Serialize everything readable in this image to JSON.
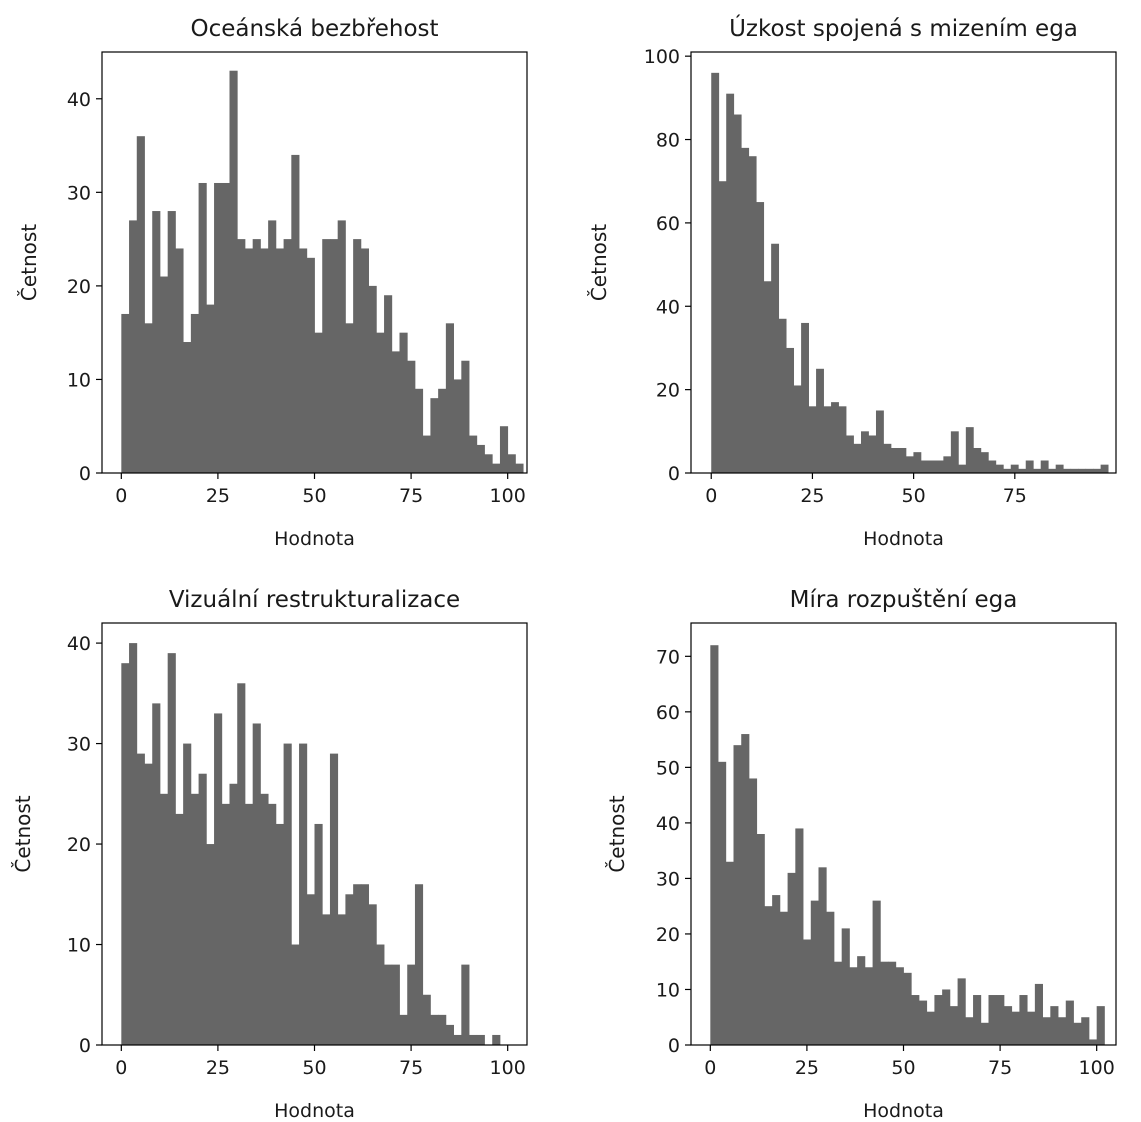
{
  "chart_data": [
    {
      "type": "bar",
      "title": "Oceánská bezbřehost",
      "xlabel": "Hodnota",
      "ylabel": "Četnost",
      "xlim": [
        -5,
        105
      ],
      "ylim": [
        0,
        45
      ],
      "xticks": [
        0,
        25,
        50,
        75,
        100
      ],
      "xtick_labels": [
        "0",
        "25",
        "50",
        "75",
        "100"
      ],
      "yticks": [
        0,
        10,
        20,
        30,
        40
      ],
      "ytick_labels": [
        "0",
        "10",
        "20",
        "30",
        "40"
      ],
      "bin_start": 0,
      "bin_width": 2,
      "values": [
        17,
        27,
        36,
        16,
        28,
        21,
        28,
        24,
        14,
        17,
        31,
        18,
        31,
        31,
        43,
        25,
        24,
        25,
        24,
        27,
        24,
        25,
        34,
        24,
        23,
        15,
        25,
        25,
        27,
        16,
        25,
        24,
        20,
        15,
        19,
        13,
        15,
        12,
        9,
        4,
        8,
        9,
        16,
        10,
        12,
        4,
        3,
        2,
        1,
        5,
        2,
        1
      ],
      "color": "#666666"
    },
    {
      "type": "bar",
      "title": "Úzkost spojená s mizením ega",
      "xlabel": "Hodnota",
      "ylabel": "Četnost",
      "xlim": [
        -5,
        100
      ],
      "ylim": [
        0,
        101
      ],
      "xticks": [
        0,
        25,
        50,
        75
      ],
      "xtick_labels": [
        "0",
        "25",
        "50",
        "75"
      ],
      "yticks": [
        0,
        20,
        40,
        60,
        80,
        100
      ],
      "ytick_labels": [
        "0",
        "20",
        "40",
        "60",
        "80",
        "100"
      ],
      "bin_start": 0,
      "bin_width": 1.85,
      "values": [
        96,
        70,
        91,
        86,
        78,
        76,
        65,
        46,
        55,
        37,
        30,
        21,
        36,
        16,
        25,
        16,
        17,
        16,
        9,
        7,
        10,
        9,
        15,
        7,
        6,
        6,
        4,
        5,
        3,
        3,
        3,
        4,
        10,
        2,
        11,
        6,
        5,
        3,
        2,
        1,
        2,
        1,
        3,
        1,
        3,
        1,
        2,
        1,
        1,
        1,
        1,
        1,
        2
      ],
      "color": "#666666"
    },
    {
      "type": "bar",
      "title": "Vizuální restrukturalizace",
      "xlabel": "Hodnota",
      "ylabel": "Četnost",
      "xlim": [
        -5,
        105
      ],
      "ylim": [
        0,
        42
      ],
      "xticks": [
        0,
        25,
        50,
        75,
        100
      ],
      "xtick_labels": [
        "0",
        "25",
        "50",
        "75",
        "100"
      ],
      "yticks": [
        0,
        10,
        20,
        30,
        40
      ],
      "ytick_labels": [
        "0",
        "10",
        "20",
        "30",
        "40"
      ],
      "bin_start": 0,
      "bin_width": 2,
      "values": [
        38,
        40,
        29,
        28,
        34,
        25,
        39,
        23,
        30,
        25,
        27,
        20,
        33,
        24,
        26,
        36,
        24,
        32,
        25,
        24,
        22,
        30,
        10,
        30,
        15,
        22,
        13,
        29,
        13,
        15,
        16,
        16,
        14,
        10,
        8,
        8,
        3,
        8,
        16,
        5,
        3,
        3,
        2,
        1,
        8,
        1,
        1,
        0,
        1,
        0
      ],
      "color": "#666666"
    },
    {
      "type": "bar",
      "title": "Míra rozpuštění ega",
      "xlabel": "Hodnota",
      "ylabel": "Četnost",
      "xlim": [
        -5,
        105
      ],
      "ylim": [
        0,
        76
      ],
      "xticks": [
        0,
        25,
        50,
        75,
        100
      ],
      "xtick_labels": [
        "0",
        "25",
        "50",
        "75",
        "100"
      ],
      "yticks": [
        0,
        10,
        20,
        30,
        40,
        50,
        60,
        70
      ],
      "ytick_labels": [
        "0",
        "10",
        "20",
        "30",
        "40",
        "50",
        "60",
        "70"
      ],
      "bin_start": 0,
      "bin_width": 2,
      "values": [
        72,
        51,
        33,
        54,
        56,
        48,
        38,
        25,
        27,
        24,
        31,
        39,
        19,
        26,
        32,
        24,
        15,
        21,
        14,
        16,
        14,
        26,
        15,
        15,
        14,
        13,
        9,
        8,
        6,
        9,
        10,
        7,
        12,
        5,
        9,
        4,
        9,
        9,
        7,
        6,
        9,
        6,
        11,
        5,
        7,
        5,
        8,
        4,
        5,
        1,
        7
      ],
      "color": "#666666"
    }
  ]
}
